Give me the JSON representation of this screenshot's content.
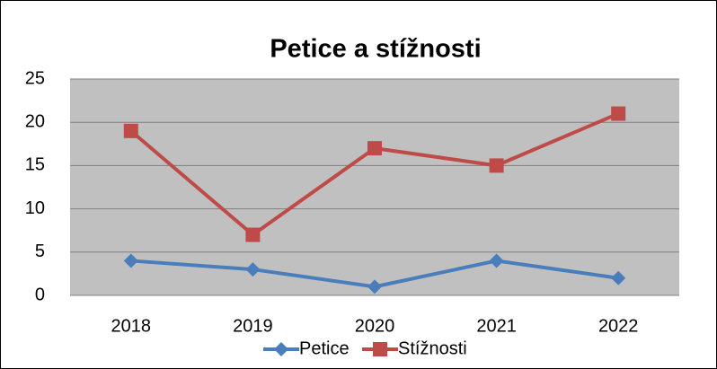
{
  "chart_data": {
    "type": "line",
    "title": "Petice a stížnosti",
    "categories": [
      "2018",
      "2019",
      "2020",
      "2021",
      "2022"
    ],
    "series": [
      {
        "name": "Petice",
        "color": "#4a7ebb",
        "marker": "diamond",
        "values": [
          4,
          3,
          1,
          4,
          2
        ]
      },
      {
        "name": "Stížnosti",
        "color": "#be4b48",
        "marker": "square",
        "values": [
          19,
          7,
          17,
          15,
          21
        ]
      }
    ],
    "ylim": [
      0,
      25
    ],
    "yticks": [
      0,
      5,
      10,
      15,
      20,
      25
    ],
    "grid": true,
    "legend": "bottom"
  }
}
